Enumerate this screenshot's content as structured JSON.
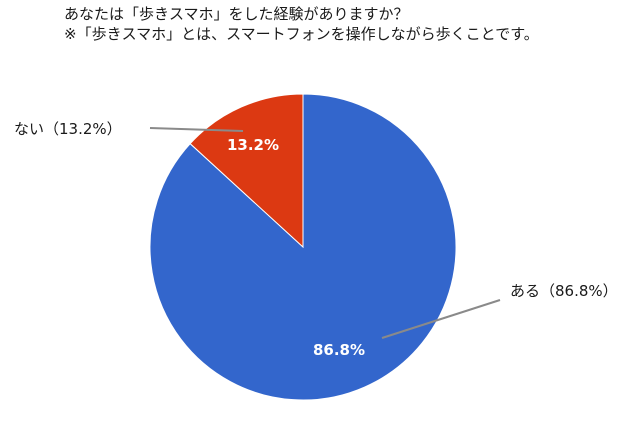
{
  "chart_data": {
    "type": "pie",
    "title": "あなたは「歩きスマホ」をした経験がありますか？",
    "subtitle": "※「歩きスマホ」とは、スマートフォンを操作しながら歩くことです。",
    "start_angle_deg": 0,
    "direction": "clockwise",
    "slices": [
      {
        "name": "ある",
        "value": 86.8,
        "data_label": "86.8%",
        "callout_label": "ある（86.8%）",
        "color": "#3366cc"
      },
      {
        "name": "ない",
        "value": 13.2,
        "data_label": "13.2%",
        "callout_label": "ない（13.2%）",
        "color": "#dc3912"
      }
    ],
    "legend": "none"
  }
}
